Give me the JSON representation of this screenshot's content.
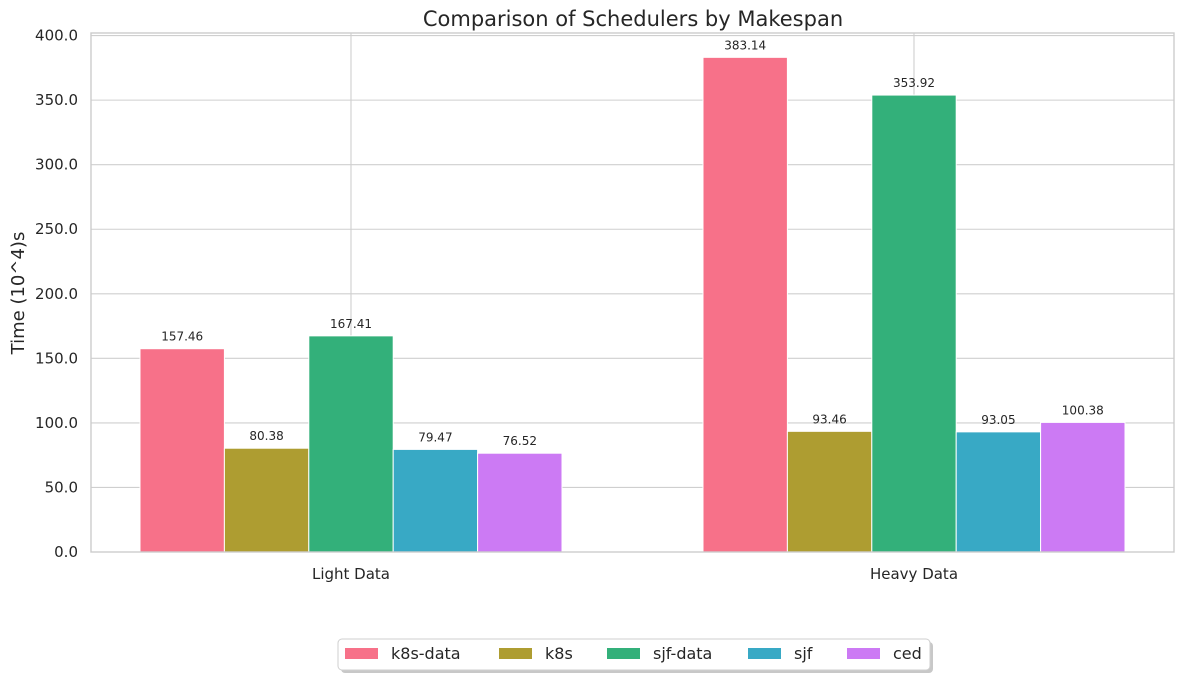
{
  "chart_data": {
    "type": "bar",
    "title": "Comparison of Schedulers by Makespan",
    "xlabel": "",
    "ylabel": "Time (10^4)s",
    "categories": [
      "Light Data",
      "Heavy Data"
    ],
    "series": [
      {
        "name": "k8s-data",
        "color": "#f77189",
        "values": [
          157.46,
          383.14
        ]
      },
      {
        "name": "k8s",
        "color": "#ae9d31",
        "values": [
          80.38,
          93.46
        ]
      },
      {
        "name": "sjf-data",
        "color": "#33b07a",
        "values": [
          167.41,
          353.92
        ]
      },
      {
        "name": "sjf",
        "color": "#38a9c5",
        "values": [
          79.47,
          93.05
        ]
      },
      {
        "name": "ced",
        "color": "#cc7af4",
        "values": [
          76.52,
          100.38
        ]
      }
    ],
    "data_labels": [
      [
        "157.46",
        "383.14"
      ],
      [
        "80.38",
        "93.46"
      ],
      [
        "167.41",
        "353.92"
      ],
      [
        "79.47",
        "93.05"
      ],
      [
        "76.52",
        "100.38"
      ]
    ],
    "ylim": [
      0,
      402
    ],
    "yticks": [
      0,
      50,
      100,
      150,
      200,
      250,
      300,
      350,
      400
    ],
    "ytick_labels": [
      "0.0",
      "50.0",
      "100.0",
      "150.0",
      "200.0",
      "250.0",
      "300.0",
      "350.0",
      "400.0"
    ],
    "grid": true,
    "legend_position": "bottom-center"
  }
}
